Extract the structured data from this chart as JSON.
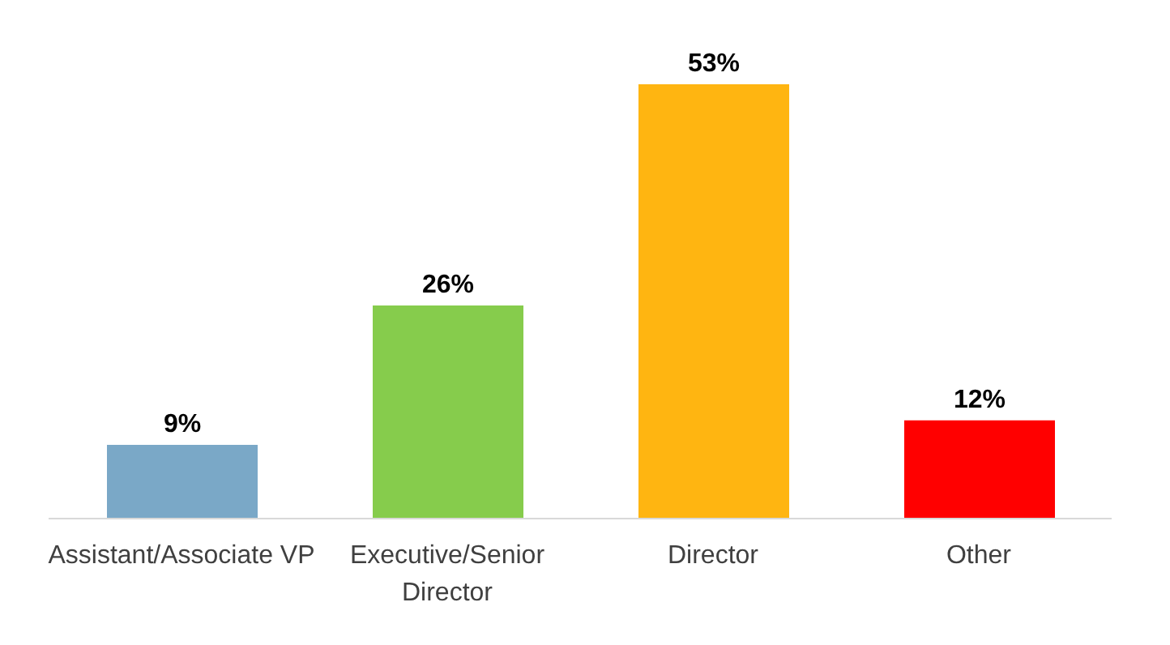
{
  "chart_data": {
    "type": "bar",
    "categories": [
      "Assistant/Associate VP",
      "Executive/Senior Director",
      "Director",
      "Other"
    ],
    "values": [
      9,
      26,
      53,
      12
    ],
    "value_labels": [
      "9%",
      "26%",
      "53%",
      "12%"
    ],
    "colors": [
      "#7aa8c7",
      "#86cc4c",
      "#ffb511",
      "#ff0000"
    ]
  }
}
